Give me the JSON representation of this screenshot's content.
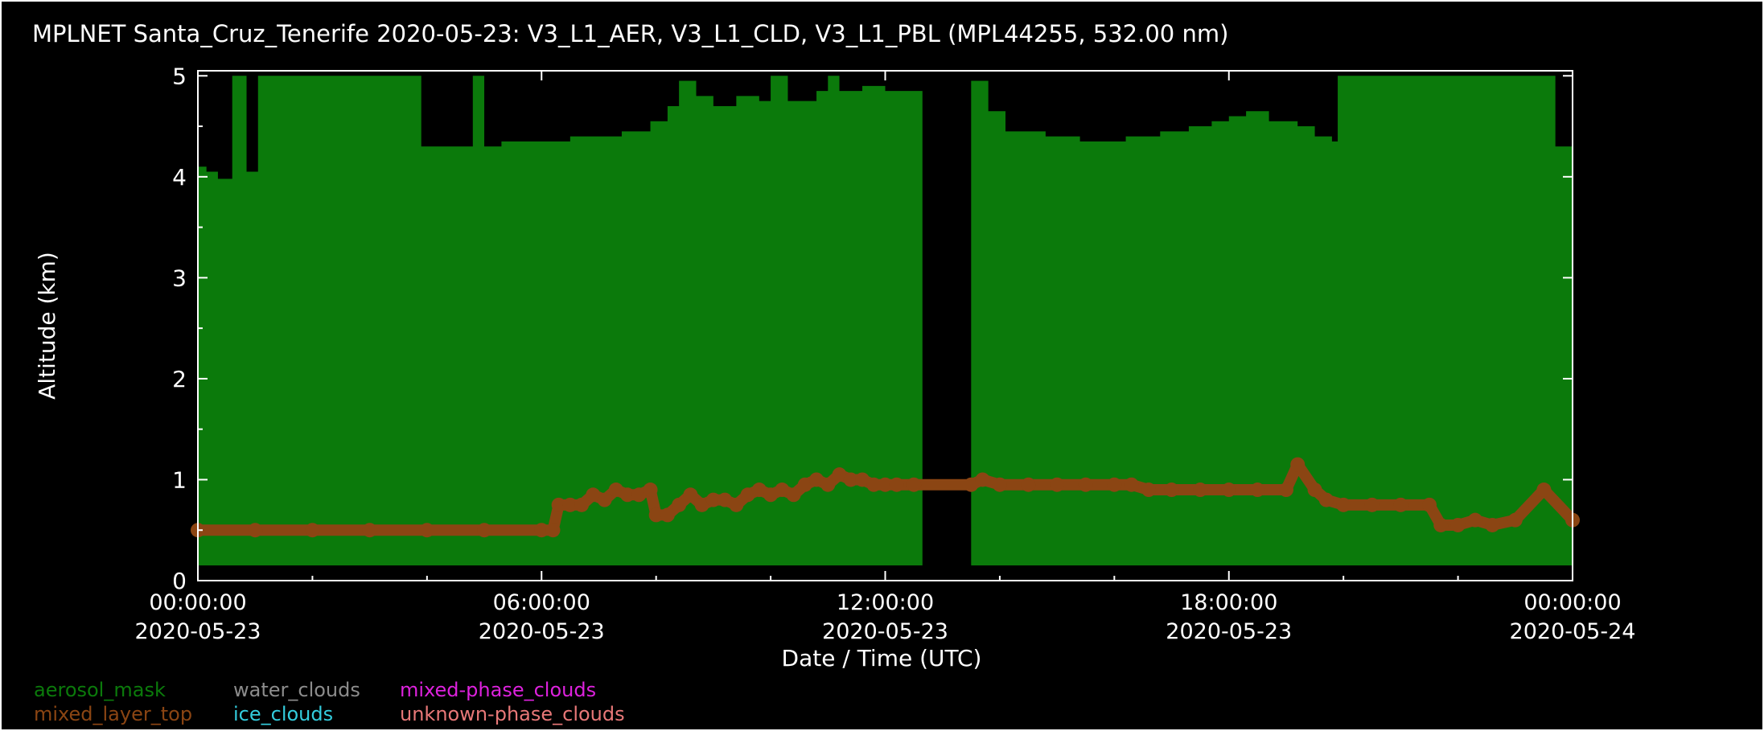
{
  "title": "MPLNET Santa_Cruz_Tenerife 2020-05-23:  V3_L1_AER, V3_L1_CLD, V3_L1_PBL  (MPL44255, 532.00 nm)",
  "colors": {
    "background": "#000000",
    "aerosol_mask": "#0B7A0B",
    "mixed_layer_top": "#8B4513",
    "water_clouds": "#8C8C8C",
    "ice_clouds": "#33CCDD",
    "mixed_phase_clouds": "#DD22DD",
    "unknown_phase_clouds": "#E87878",
    "axis": "#FFFFFF"
  },
  "chart_data": {
    "type": "area",
    "title": "MPLNET Santa_Cruz_Tenerife 2020-05-23:  V3_L1_AER, V3_L1_CLD, V3_L1_PBL  (MPL44255, 532.00 nm)",
    "xlabel": "Date / Time (UTC)",
    "ylabel": "Altitude (km)",
    "xlim": [
      0,
      24
    ],
    "ylim": [
      0,
      5.05
    ],
    "x_ticks": [
      {
        "x": 0,
        "time": "00:00:00",
        "date": "2020-05-23"
      },
      {
        "x": 6,
        "time": "06:00:00",
        "date": "2020-05-23"
      },
      {
        "x": 12,
        "time": "12:00:00",
        "date": "2020-05-23"
      },
      {
        "x": 18,
        "time": "18:00:00",
        "date": "2020-05-23"
      },
      {
        "x": 24,
        "time": "00:00:00",
        "date": "2020-05-24"
      }
    ],
    "y_ticks": [
      "0",
      "1",
      "2",
      "3",
      "4",
      "5"
    ],
    "y_tick_values": [
      0,
      1,
      2,
      3,
      4,
      5
    ],
    "legend": [
      "aerosol_mask",
      "water_clouds",
      "mixed-phase_clouds",
      "mixed_layer_top",
      "ice_clouds",
      "unknown-phase_clouds"
    ],
    "aerosol_mask_base_km": 0.15,
    "aerosol_mask_top": [
      [
        0.0,
        4.1
      ],
      [
        0.15,
        4.05
      ],
      [
        0.35,
        3.98
      ],
      [
        0.6,
        5.0
      ],
      [
        0.85,
        4.05
      ],
      [
        1.05,
        5.0
      ],
      [
        3.9,
        4.3
      ],
      [
        4.8,
        5.0
      ],
      [
        5.0,
        4.3
      ],
      [
        5.3,
        4.35
      ],
      [
        6.5,
        4.4
      ],
      [
        7.4,
        4.45
      ],
      [
        7.9,
        4.55
      ],
      [
        8.2,
        4.7
      ],
      [
        8.4,
        4.95
      ],
      [
        8.7,
        4.8
      ],
      [
        9.0,
        4.7
      ],
      [
        9.4,
        4.8
      ],
      [
        9.8,
        4.75
      ],
      [
        10.0,
        5.0
      ],
      [
        10.3,
        4.75
      ],
      [
        10.8,
        4.85
      ],
      [
        11.0,
        5.0
      ],
      [
        11.2,
        4.85
      ],
      [
        11.6,
        4.9
      ],
      [
        12.0,
        4.85
      ],
      [
        12.2,
        4.85
      ],
      [
        12.65,
        4.8
      ],
      [
        13.5,
        4.95
      ],
      [
        13.8,
        4.65
      ],
      [
        14.1,
        4.45
      ],
      [
        14.8,
        4.4
      ],
      [
        15.4,
        4.35
      ],
      [
        16.2,
        4.4
      ],
      [
        16.8,
        4.45
      ],
      [
        17.3,
        4.5
      ],
      [
        17.7,
        4.55
      ],
      [
        18.0,
        4.6
      ],
      [
        18.3,
        4.65
      ],
      [
        18.7,
        4.55
      ],
      [
        19.2,
        4.5
      ],
      [
        19.5,
        4.4
      ],
      [
        19.8,
        4.35
      ],
      [
        19.9,
        5.0
      ],
      [
        23.7,
        4.3
      ],
      [
        24.0,
        4.3
      ]
    ],
    "aerosol_mask_gap": [
      12.65,
      13.5
    ],
    "series": [
      {
        "name": "mixed_layer_top",
        "x": [
          0.0,
          1.0,
          2.0,
          3.0,
          4.0,
          5.0,
          6.0,
          6.2,
          6.3,
          6.5,
          6.7,
          6.9,
          7.1,
          7.3,
          7.5,
          7.7,
          7.9,
          8.0,
          8.2,
          8.4,
          8.6,
          8.8,
          9.0,
          9.2,
          9.4,
          9.6,
          9.8,
          10.0,
          10.2,
          10.4,
          10.6,
          10.8,
          11.0,
          11.2,
          11.4,
          11.6,
          11.8,
          12.0,
          12.2,
          12.5,
          13.5,
          13.7,
          14.0,
          14.5,
          15.0,
          15.5,
          16.0,
          16.3,
          16.6,
          17.0,
          17.5,
          18.0,
          18.5,
          19.0,
          19.2,
          19.5,
          19.7,
          20.0,
          20.5,
          21.0,
          21.5,
          21.7,
          22.0,
          22.3,
          22.6,
          23.0,
          23.5,
          24.0
        ],
        "y": [
          0.5,
          0.5,
          0.5,
          0.5,
          0.5,
          0.5,
          0.5,
          0.5,
          0.75,
          0.75,
          0.75,
          0.85,
          0.8,
          0.9,
          0.85,
          0.85,
          0.9,
          0.65,
          0.65,
          0.75,
          0.85,
          0.75,
          0.8,
          0.8,
          0.75,
          0.85,
          0.9,
          0.85,
          0.9,
          0.85,
          0.95,
          1.0,
          0.95,
          1.05,
          1.0,
          1.0,
          0.95,
          0.95,
          0.95,
          0.95,
          0.95,
          1.0,
          0.95,
          0.95,
          0.95,
          0.95,
          0.95,
          0.95,
          0.9,
          0.9,
          0.9,
          0.9,
          0.9,
          0.9,
          1.15,
          0.9,
          0.8,
          0.75,
          0.75,
          0.75,
          0.75,
          0.55,
          0.55,
          0.6,
          0.55,
          0.6,
          0.9,
          0.6
        ]
      }
    ]
  }
}
